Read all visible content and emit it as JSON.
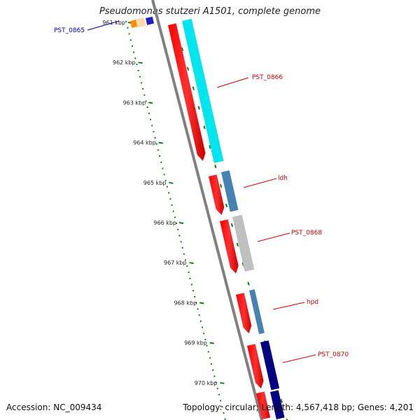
{
  "title": "Pseudomonas stutzeri A1501, complete genome",
  "footer": {
    "accession": "Accession: NC_009434",
    "summary": "Topology: circular; Length: 4,567,418 bp; Genes: 4,201"
  },
  "ticks": [
    {
      "label": "961 kbp"
    },
    {
      "label": "962 kbp"
    },
    {
      "label": "963 kbp"
    },
    {
      "label": "964 kbp"
    },
    {
      "label": "965 kbp"
    },
    {
      "label": "966 kbp"
    },
    {
      "label": "967 kbp"
    },
    {
      "label": "968 kbp"
    },
    {
      "label": "969 kbp"
    },
    {
      "label": "970 kbp"
    }
  ],
  "genes": [
    {
      "label": "PST_0865",
      "label_color": "#0000aa",
      "fill": "#ffd9b0",
      "cds_color": "#ff8c00"
    },
    {
      "label": "PST_0866",
      "label_color": "#cc0000",
      "fill": "#00e5ee"
    },
    {
      "label": "ldh",
      "label_color": "#cc0000",
      "fill": "#4682b4"
    },
    {
      "label": "PST_0868",
      "label_color": "#cc0000",
      "fill": "#c0c0c0"
    },
    {
      "label": "hpd",
      "label_color": "#cc0000",
      "fill": "#4682b4"
    },
    {
      "label": "PST_0870",
      "label_color": "#cc0000",
      "fill": "#000080"
    }
  ],
  "colors": {
    "backbone": "#808080",
    "cds": "#ff0000",
    "tick": "#1a7a1a"
  }
}
